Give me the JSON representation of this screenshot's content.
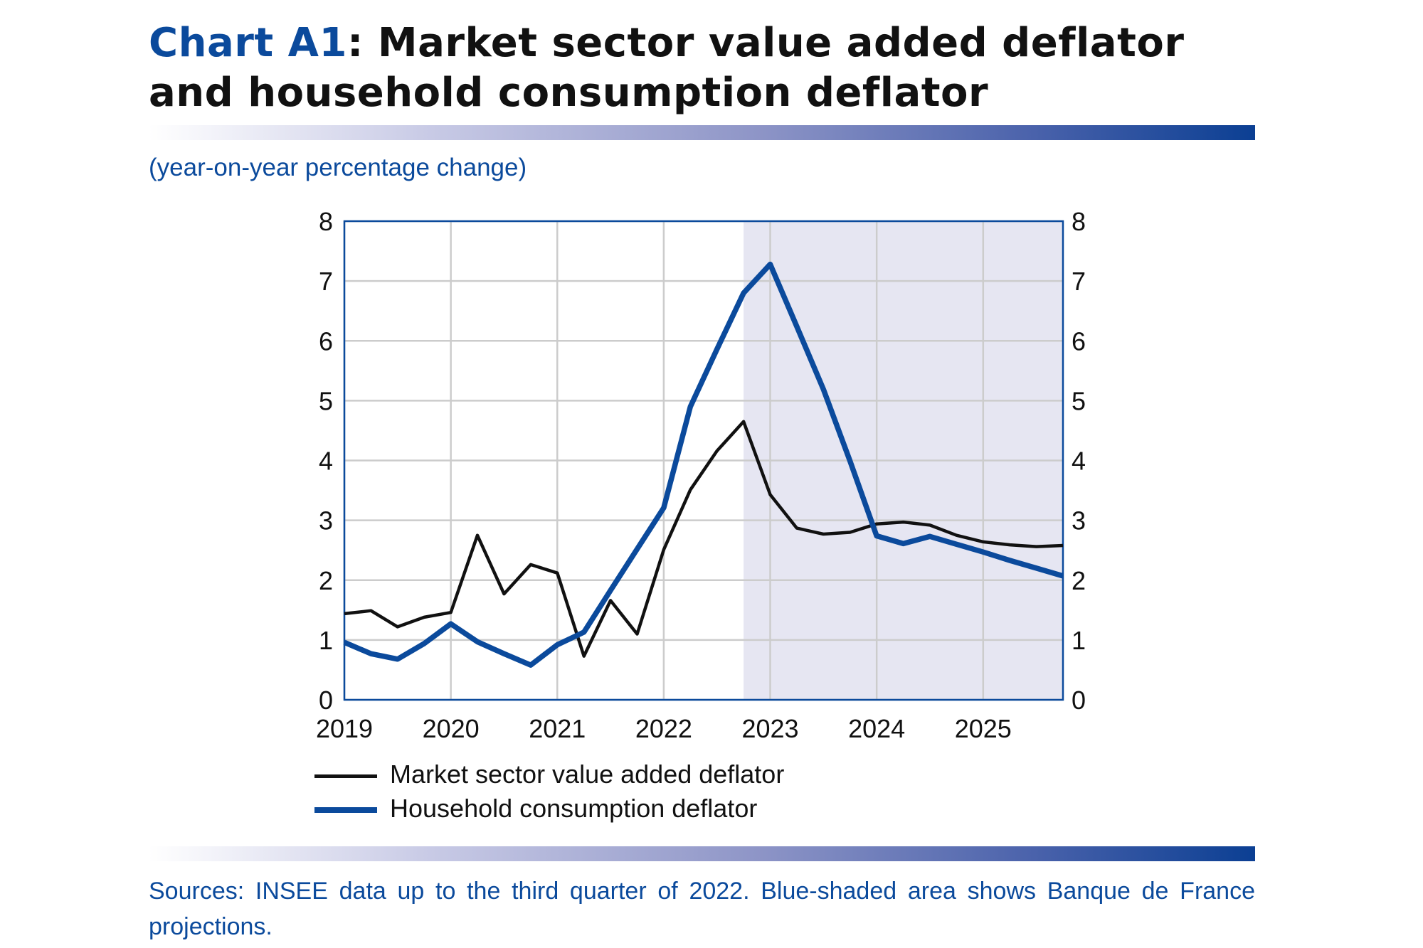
{
  "title": {
    "highlight": "Chart A1",
    "rest": ": Market sector value added deflator and household consumption deflator"
  },
  "subtitle": "(year-on-year percentage change)",
  "sources": "Sources: INSEE data up to the third quarter of 2022. Blue-shaded area shows Banque de France projections.",
  "colors": {
    "accent": "#0b4a9c",
    "black_series": "#111111",
    "blue_series": "#0b4a9c",
    "shade": "#e6e6f2",
    "grid": "#cccccc"
  },
  "chart_data": {
    "type": "line",
    "xlabel": "",
    "ylabel": "",
    "xlim": [
      2019,
      2025.75
    ],
    "ylim": [
      0,
      8
    ],
    "grid": true,
    "legend_position": "bottom",
    "x_tick_labels": [
      "2019",
      "2020",
      "2021",
      "2022",
      "2023",
      "2024",
      "2025"
    ],
    "x_ticks": [
      2019,
      2020,
      2021,
      2022,
      2023,
      2024,
      2025
    ],
    "y_ticks": [
      0,
      1,
      2,
      3,
      4,
      5,
      6,
      7,
      8
    ],
    "shaded_region": {
      "from": 2022.75,
      "to": 2025.75,
      "meaning": "projections"
    },
    "x": [
      2019,
      2019.25,
      2019.5,
      2019.75,
      2020,
      2020.25,
      2020.5,
      2020.75,
      2021,
      2021.25,
      2021.5,
      2021.75,
      2022,
      2022.25,
      2022.5,
      2022.75,
      2023,
      2023.25,
      2023.5,
      2023.75,
      2024,
      2024.25,
      2024.5,
      2024.75,
      2025,
      2025.25,
      2025.5,
      2025.75
    ],
    "series": [
      {
        "name": "Market sector value added deflator",
        "color": "#111111",
        "values": [
          1.44,
          1.49,
          1.22,
          1.38,
          1.46,
          2.75,
          1.77,
          2.26,
          2.12,
          0.73,
          1.66,
          1.1,
          2.51,
          3.51,
          4.16,
          4.65,
          3.43,
          2.87,
          2.77,
          2.8,
          2.94,
          2.97,
          2.92,
          2.75,
          2.64,
          2.59,
          2.56,
          2.58
        ]
      },
      {
        "name": "Household consumption deflator",
        "color": "#0b4a9c",
        "values": [
          0.96,
          0.77,
          0.68,
          0.94,
          1.27,
          0.97,
          0.77,
          0.58,
          0.92,
          1.13,
          1.83,
          2.52,
          3.21,
          4.9,
          5.86,
          6.8,
          7.28,
          6.24,
          5.19,
          3.99,
          2.74,
          2.61,
          2.73,
          2.6,
          2.47,
          2.33,
          2.2,
          2.07
        ]
      }
    ]
  }
}
